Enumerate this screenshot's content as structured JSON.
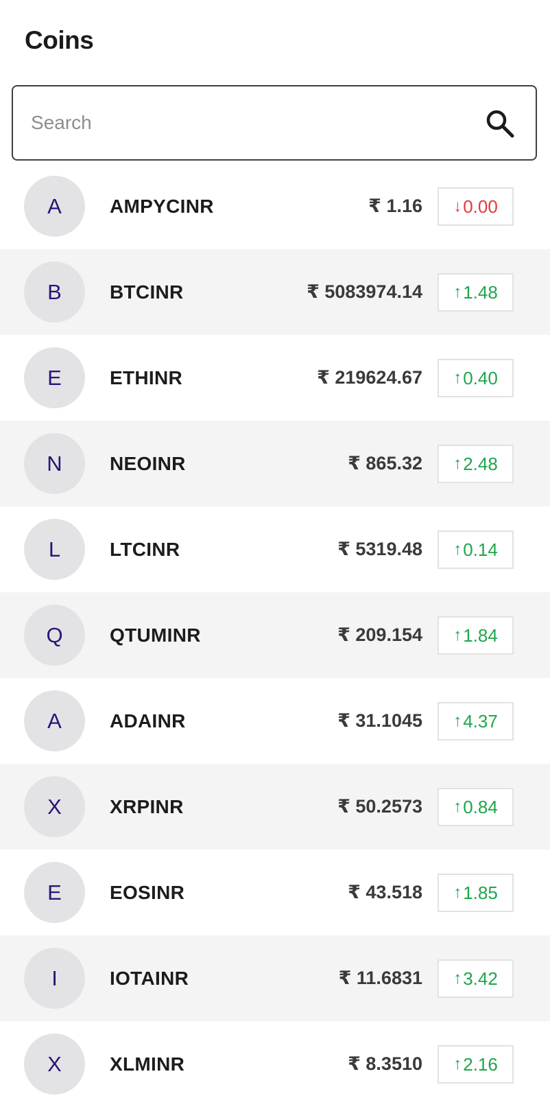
{
  "header": {
    "title": "Coins"
  },
  "search": {
    "placeholder": "Search",
    "value": "",
    "icon": "search-icon"
  },
  "colors": {
    "up": "#1ea64a",
    "down": "#e23a3a",
    "avatar_letter": "#2c1476"
  },
  "coins": [
    {
      "initial": "A",
      "symbol": "AMPYCINR",
      "price": "₹ 1.16",
      "change": "0.00",
      "direction": "down",
      "arrow": "↓"
    },
    {
      "initial": "B",
      "symbol": "BTCINR",
      "price": "₹ 5083974.14",
      "change": "1.48",
      "direction": "up",
      "arrow": "↑"
    },
    {
      "initial": "E",
      "symbol": "ETHINR",
      "price": "₹ 219624.67",
      "change": "0.40",
      "direction": "up",
      "arrow": "↑"
    },
    {
      "initial": "N",
      "symbol": "NEOINR",
      "price": "₹ 865.32",
      "change": "2.48",
      "direction": "up",
      "arrow": "↑"
    },
    {
      "initial": "L",
      "symbol": "LTCINR",
      "price": "₹ 5319.48",
      "change": "0.14",
      "direction": "up",
      "arrow": "↑"
    },
    {
      "initial": "Q",
      "symbol": "QTUMINR",
      "price": "₹ 209.154",
      "change": "1.84",
      "direction": "up",
      "arrow": "↑"
    },
    {
      "initial": "A",
      "symbol": "ADAINR",
      "price": "₹ 31.1045",
      "change": "4.37",
      "direction": "up",
      "arrow": "↑"
    },
    {
      "initial": "X",
      "symbol": "XRPINR",
      "price": "₹ 50.2573",
      "change": "0.84",
      "direction": "up",
      "arrow": "↑"
    },
    {
      "initial": "E",
      "symbol": "EOSINR",
      "price": "₹ 43.518",
      "change": "1.85",
      "direction": "up",
      "arrow": "↑"
    },
    {
      "initial": "I",
      "symbol": "IOTAINR",
      "price": "₹ 11.6831",
      "change": "3.42",
      "direction": "up",
      "arrow": "↑"
    },
    {
      "initial": "X",
      "symbol": "XLMINR",
      "price": "₹ 8.3510",
      "change": "2.16",
      "direction": "up",
      "arrow": "↑"
    }
  ]
}
